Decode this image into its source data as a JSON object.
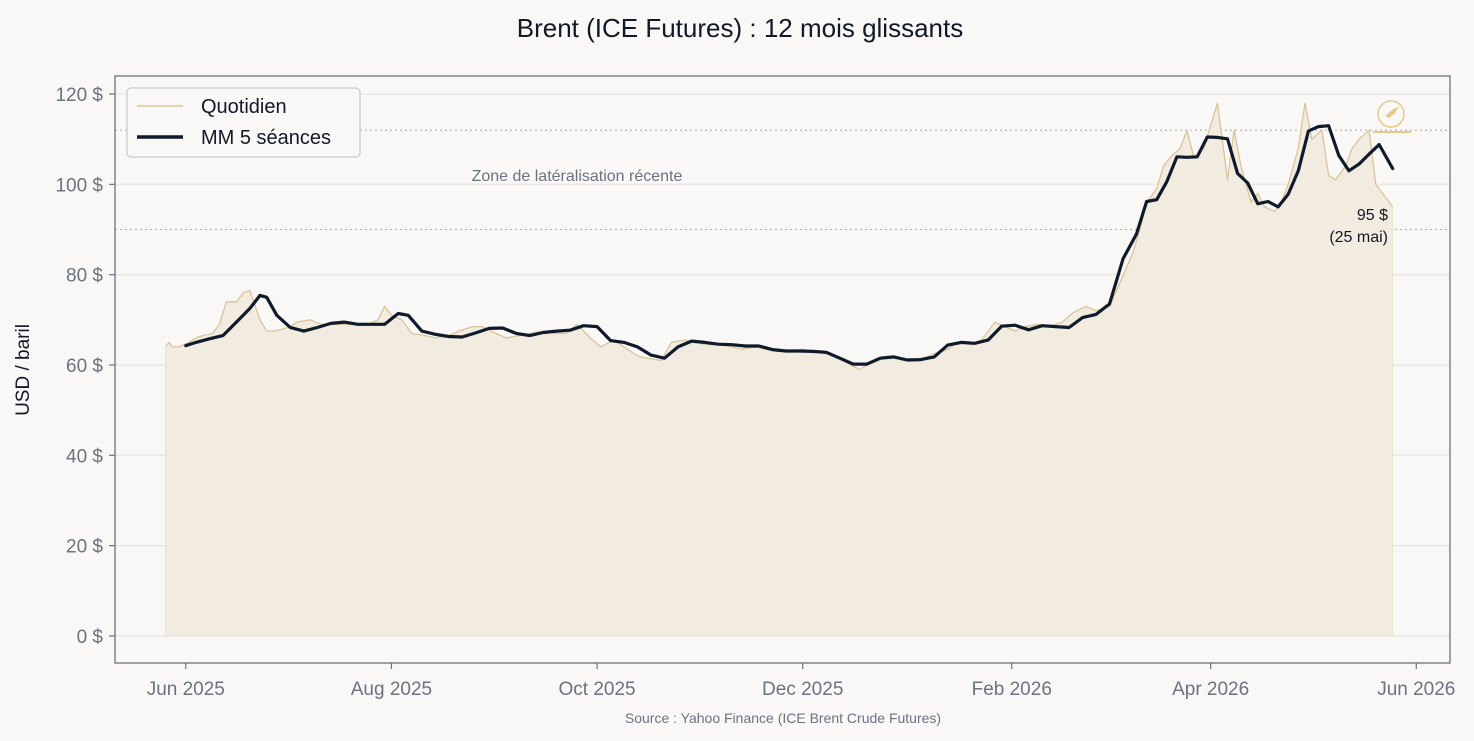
{
  "chart_data": {
    "type": "line",
    "title": "Brent (ICE Futures) : 12 mois glissants",
    "xlabel": "",
    "ylabel": "USD / baril",
    "source": "Source : Yahoo Finance (ICE Brent Crude Futures)",
    "ylim": [
      -6,
      124
    ],
    "xlim": [
      "2025-05-11",
      "2026-06-11"
    ],
    "y_ticks": [
      0,
      20,
      40,
      60,
      80,
      100,
      120
    ],
    "y_tick_labels": [
      "0 $",
      "20 $",
      "40 $",
      "60 $",
      "80 $",
      "100 $",
      "120 $"
    ],
    "x_ticks": [
      "2025-06-01",
      "2025-08-01",
      "2025-10-01",
      "2025-12-01",
      "2026-02-01",
      "2026-04-01",
      "2026-06-01"
    ],
    "x_tick_labels": [
      "Jun 2025",
      "Aug 2025",
      "Oct 2025",
      "Dec 2025",
      "Feb 2026",
      "Apr 2026",
      "Jun 2026"
    ],
    "grid": "horizontal",
    "legend": "top-left",
    "reference_lines": [
      112,
      90
    ],
    "reference_label": "Zone de latéralisation récente",
    "last_annotation": {
      "line1": "95 $",
      "line2": "(25 mai)"
    },
    "colors": {
      "daily": "#d9c59b",
      "ma": "#0f1a2b",
      "fill": "#f1ebe0",
      "grid": "#ebe8e4",
      "ref": "#b8b4ad"
    },
    "series": [
      {
        "name": "Quotidien",
        "x": [
          "2025-05-26",
          "2025-05-27",
          "2025-05-28",
          "2025-05-30",
          "2025-06-02",
          "2025-06-04",
          "2025-06-06",
          "2025-06-09",
          "2025-06-11",
          "2025-06-13",
          "2025-06-16",
          "2025-06-18",
          "2025-06-20",
          "2025-06-23",
          "2025-06-25",
          "2025-06-27",
          "2025-06-30",
          "2025-07-02",
          "2025-07-04",
          "2025-07-08",
          "2025-07-11",
          "2025-07-15",
          "2025-07-18",
          "2025-07-22",
          "2025-07-25",
          "2025-07-28",
          "2025-07-30",
          "2025-08-01",
          "2025-08-04",
          "2025-08-07",
          "2025-08-11",
          "2025-08-14",
          "2025-08-18",
          "2025-08-21",
          "2025-08-25",
          "2025-08-28",
          "2025-09-01",
          "2025-09-04",
          "2025-09-08",
          "2025-09-11",
          "2025-09-15",
          "2025-09-18",
          "2025-09-22",
          "2025-09-25",
          "2025-09-29",
          "2025-10-02",
          "2025-10-06",
          "2025-10-09",
          "2025-10-13",
          "2025-10-16",
          "2025-10-20",
          "2025-10-23",
          "2025-10-27",
          "2025-10-30",
          "2025-11-03",
          "2025-11-06",
          "2025-11-10",
          "2025-11-13",
          "2025-11-17",
          "2025-11-20",
          "2025-11-24",
          "2025-11-27",
          "2025-12-01",
          "2025-12-04",
          "2025-12-08",
          "2025-12-11",
          "2025-12-15",
          "2025-12-18",
          "2025-12-22",
          "2025-12-26",
          "2025-12-30",
          "2026-01-02",
          "2026-01-06",
          "2026-01-09",
          "2026-01-13",
          "2026-01-16",
          "2026-01-20",
          "2026-01-23",
          "2026-01-27",
          "2026-01-30",
          "2026-02-02",
          "2026-02-05",
          "2026-02-09",
          "2026-02-12",
          "2026-02-16",
          "2026-02-19",
          "2026-02-23",
          "2026-02-26",
          "2026-03-02",
          "2026-03-05",
          "2026-03-09",
          "2026-03-11",
          "2026-03-13",
          "2026-03-16",
          "2026-03-18",
          "2026-03-20",
          "2026-03-23",
          "2026-03-25",
          "2026-03-27",
          "2026-03-30",
          "2026-04-01",
          "2026-04-03",
          "2026-04-06",
          "2026-04-08",
          "2026-04-10",
          "2026-04-13",
          "2026-04-15",
          "2026-04-17",
          "2026-04-20",
          "2026-04-22",
          "2026-04-24",
          "2026-04-27",
          "2026-04-29",
          "2026-05-01",
          "2026-05-04",
          "2026-05-06",
          "2026-05-08",
          "2026-05-11",
          "2026-05-13",
          "2026-05-15",
          "2026-05-18",
          "2026-05-20",
          "2026-05-22",
          "2026-05-25"
        ],
        "y": [
          64,
          65,
          64,
          64,
          65,
          66,
          66.5,
          67,
          69,
          74,
          74,
          76,
          76.5,
          70,
          67.5,
          67.5,
          68,
          68.5,
          69.5,
          70,
          69,
          69,
          69,
          69,
          69,
          70,
          73,
          71,
          70,
          67,
          66.5,
          66,
          66.5,
          67.5,
          68.5,
          68.5,
          67,
          66,
          66.5,
          67,
          67.5,
          67,
          67,
          69,
          66,
          64,
          65.5,
          64,
          62,
          61.5,
          61,
          65,
          65.5,
          65,
          64.5,
          64.5,
          64,
          63.5,
          64,
          63.5,
          63,
          63,
          63.5,
          63,
          62.5,
          62,
          60,
          59,
          61,
          62,
          61.5,
          61,
          61.5,
          62.5,
          63.5,
          65,
          64.5,
          65.5,
          69.5,
          68.5,
          67.5,
          68.5,
          69,
          68.5,
          69.5,
          71.5,
          73,
          72,
          73,
          78,
          85,
          90,
          96,
          99,
          104,
          106,
          108,
          112,
          106,
          108,
          113,
          118,
          101,
          112,
          104,
          96,
          98,
          95,
          94,
          96,
          100,
          108,
          118,
          110,
          112,
          102,
          101,
          104,
          108,
          110,
          112,
          100,
          98,
          95
        ]
      },
      {
        "name": "MM 5 séances",
        "x": [
          "2025-06-01",
          "2025-06-04",
          "2025-06-08",
          "2025-06-12",
          "2025-06-16",
          "2025-06-20",
          "2025-06-23",
          "2025-06-25",
          "2025-06-28",
          "2025-07-02",
          "2025-07-06",
          "2025-07-10",
          "2025-07-14",
          "2025-07-18",
          "2025-07-22",
          "2025-07-27",
          "2025-07-30",
          "2025-08-03",
          "2025-08-06",
          "2025-08-10",
          "2025-08-14",
          "2025-08-18",
          "2025-08-22",
          "2025-08-26",
          "2025-08-30",
          "2025-09-03",
          "2025-09-07",
          "2025-09-11",
          "2025-09-15",
          "2025-09-19",
          "2025-09-23",
          "2025-09-27",
          "2025-10-01",
          "2025-10-05",
          "2025-10-09",
          "2025-10-13",
          "2025-10-17",
          "2025-10-21",
          "2025-10-25",
          "2025-10-29",
          "2025-11-02",
          "2025-11-06",
          "2025-11-10",
          "2025-11-14",
          "2025-11-18",
          "2025-11-22",
          "2025-11-26",
          "2025-11-30",
          "2025-12-04",
          "2025-12-08",
          "2025-12-12",
          "2025-12-16",
          "2025-12-20",
          "2025-12-24",
          "2025-12-28",
          "2026-01-01",
          "2026-01-05",
          "2026-01-09",
          "2026-01-13",
          "2026-01-17",
          "2026-01-21",
          "2026-01-25",
          "2026-01-29",
          "2026-02-02",
          "2026-02-06",
          "2026-02-10",
          "2026-02-14",
          "2026-02-18",
          "2026-02-22",
          "2026-02-26",
          "2026-03-02",
          "2026-03-06",
          "2026-03-10",
          "2026-03-13",
          "2026-03-16",
          "2026-03-19",
          "2026-03-22",
          "2026-03-25",
          "2026-03-28",
          "2026-03-31",
          "2026-04-03",
          "2026-04-06",
          "2026-04-09",
          "2026-04-12",
          "2026-04-15",
          "2026-04-18",
          "2026-04-21",
          "2026-04-24",
          "2026-04-27",
          "2026-04-30",
          "2026-05-03",
          "2026-05-06",
          "2026-05-09",
          "2026-05-12",
          "2026-05-15",
          "2026-05-18",
          "2026-05-21",
          "2026-05-25"
        ],
        "y": [
          64.3,
          65,
          65.8,
          66.5,
          69.5,
          72.5,
          75.4,
          75,
          71,
          68.3,
          67.5,
          68.3,
          69.2,
          69.5,
          69,
          69,
          69,
          71.4,
          71,
          67.5,
          66.8,
          66.3,
          66.2,
          67.1,
          68.1,
          68.2,
          67,
          66.5,
          67.2,
          67.5,
          67.7,
          68.7,
          68.5,
          65.4,
          65,
          64,
          62.2,
          61.5,
          64,
          65.3,
          65,
          64.6,
          64.5,
          64.2,
          64.2,
          63.4,
          63.1,
          63.1,
          63,
          62.8,
          61.5,
          60.2,
          60.2,
          61.5,
          61.8,
          61.1,
          61.2,
          61.8,
          64.4,
          65,
          64.8,
          65.5,
          68.6,
          68.8,
          67.8,
          68.7,
          68.5,
          68.3,
          70.5,
          71.2,
          73.5,
          83.5,
          89,
          96.2,
          96.6,
          100.6,
          106.1,
          106,
          106.1,
          110.5,
          110.4,
          110.1,
          102.4,
          100.3,
          95.7,
          96.2,
          95,
          97.8,
          103,
          111.8,
          112.8,
          113,
          106.4,
          103,
          104.5,
          106.7,
          108.8,
          103.5
        ]
      }
    ]
  }
}
